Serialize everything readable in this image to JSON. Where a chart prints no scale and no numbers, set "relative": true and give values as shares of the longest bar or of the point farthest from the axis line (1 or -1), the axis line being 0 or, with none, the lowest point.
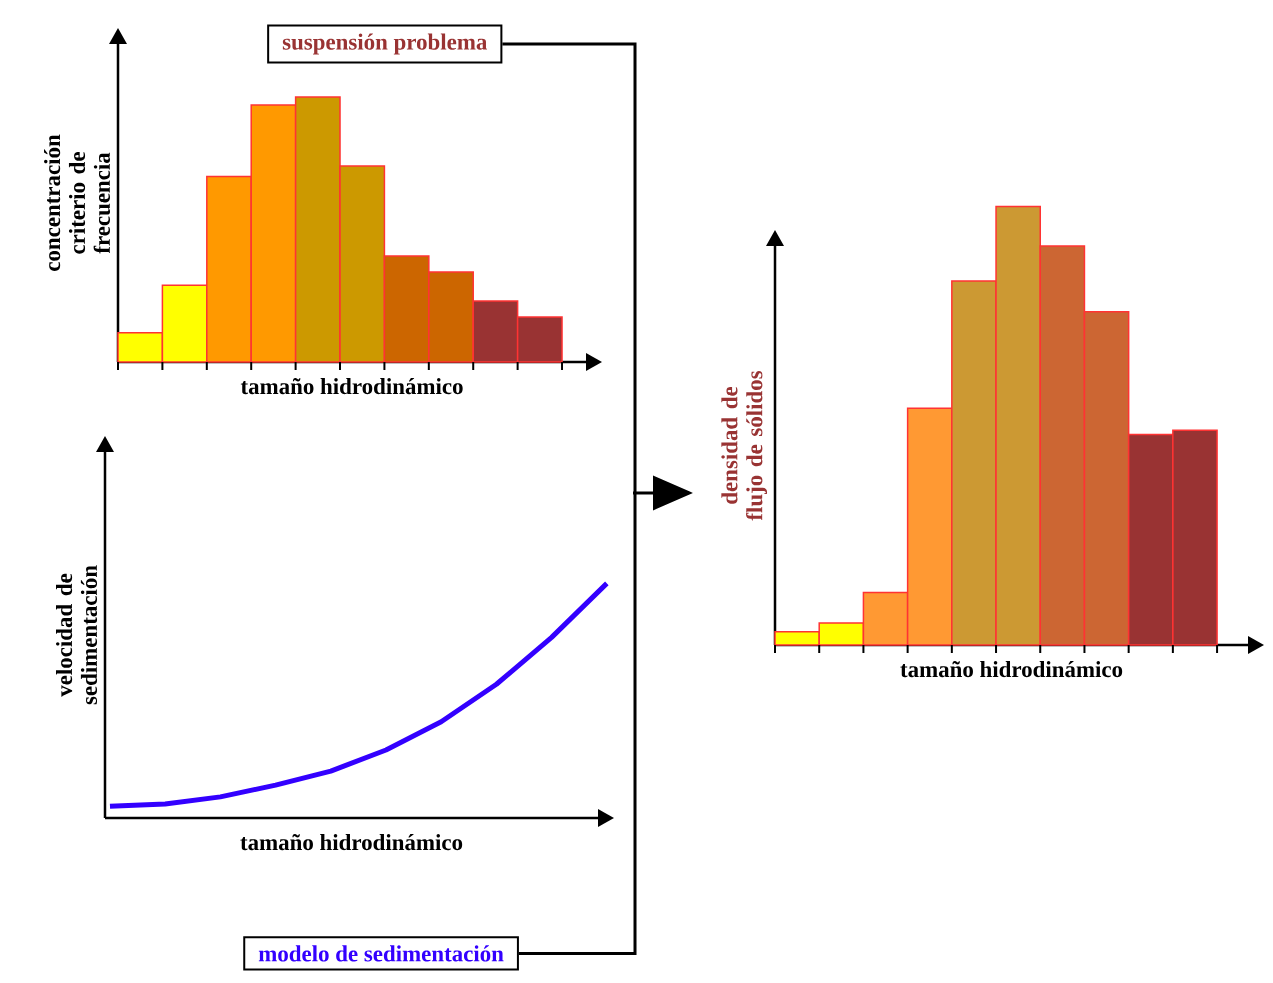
{
  "chart_data": [
    {
      "type": "bar",
      "ylabel": "concentración criterio de frecuencia",
      "xlabel": "tamaño hidrodinámico",
      "annotations": [
        "suspensión problema"
      ],
      "relative": true,
      "categories": [
        null,
        null,
        null,
        null,
        null,
        null,
        null,
        null,
        null,
        null
      ],
      "values": [
        0.11,
        0.29,
        0.7,
        0.97,
        1,
        0.74,
        0.4,
        0.34,
        0.23,
        0.17
      ],
      "colors": [
        "#ffff00",
        "#ffff00",
        "#ff9900",
        "#ff9900",
        "#cc9900",
        "#cc9900",
        "#cc6600",
        "#cc6600",
        "#993333",
        "#993333"
      ]
    },
    {
      "type": "line",
      "ylabel": "velocidad de sedimentación",
      "xlabel": "tamaño hidrodinámico",
      "annotations": [
        "modelo de sedimentación"
      ],
      "relative": true,
      "categories": [
        null,
        null,
        null,
        null,
        null,
        null,
        null,
        null,
        null,
        null
      ],
      "values": [
        0.05,
        0.06,
        0.09,
        0.14,
        0.2,
        0.29,
        0.41,
        0.57,
        0.77,
        1
      ],
      "color": "#3300ff"
    },
    {
      "type": "bar",
      "ylabel": "densidad de flujo de sólidos",
      "xlabel": "tamaño hidrodinámico",
      "relative": true,
      "categories": [
        null,
        null,
        null,
        null,
        null,
        null,
        null,
        null,
        null,
        null
      ],
      "values": [
        0.03,
        0.05,
        0.12,
        0.54,
        0.83,
        1,
        0.91,
        0.76,
        0.48,
        0.49
      ],
      "colors": [
        "#ffff00",
        "#ffff00",
        "#ff9933",
        "#ff9933",
        "#cc9933",
        "#cc9933",
        "#cc6633",
        "#cc6633",
        "#993333",
        "#993333"
      ]
    }
  ]
}
